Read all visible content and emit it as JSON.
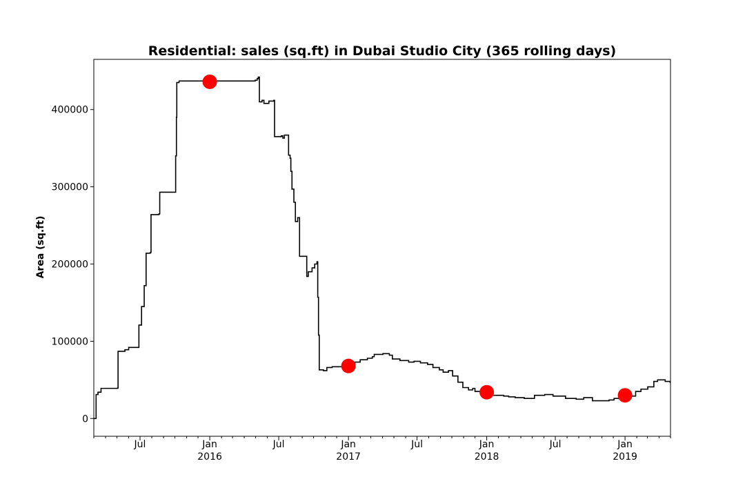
{
  "chart_data": {
    "type": "line",
    "title": "Residential: sales (sq.ft) in Dubai Studio City (365 rolling days)",
    "xlabel": "",
    "ylabel": "Area (sq.ft)",
    "xlim": [
      "2015-03-01",
      "2019-05-01"
    ],
    "ylim": [
      -23000,
      465000
    ],
    "grid": false,
    "line_color": "#000000",
    "marker_color": "#ff0000",
    "y_ticks": [
      {
        "value": 0,
        "label": "0"
      },
      {
        "value": 100000,
        "label": "100000"
      },
      {
        "value": 200000,
        "label": "200000"
      },
      {
        "value": 300000,
        "label": "300000"
      },
      {
        "value": 400000,
        "label": "400000"
      }
    ],
    "x_major_ticks": [
      {
        "date": "2015-07-01",
        "label": "Jul",
        "sublabel": ""
      },
      {
        "date": "2016-01-01",
        "label": "Jan",
        "sublabel": "2016"
      },
      {
        "date": "2016-07-01",
        "label": "Jul",
        "sublabel": ""
      },
      {
        "date": "2017-01-01",
        "label": "Jan",
        "sublabel": "2017"
      },
      {
        "date": "2017-07-01",
        "label": "Jul",
        "sublabel": ""
      },
      {
        "date": "2018-01-01",
        "label": "Jan",
        "sublabel": "2018"
      },
      {
        "date": "2018-07-01",
        "label": "Jul",
        "sublabel": ""
      },
      {
        "date": "2019-01-01",
        "label": "Jan",
        "sublabel": "2019"
      }
    ],
    "series": [
      {
        "values": [
          [
            "2015-03-01",
            0
          ],
          [
            "2015-03-06",
            0
          ],
          [
            "2015-03-07",
            31000
          ],
          [
            "2015-03-12",
            34000
          ],
          [
            "2015-03-20",
            39000
          ],
          [
            "2015-05-03",
            39500
          ],
          [
            "2015-05-04",
            87000
          ],
          [
            "2015-05-22",
            89000
          ],
          [
            "2015-06-01",
            92000
          ],
          [
            "2015-06-26",
            92000
          ],
          [
            "2015-06-28",
            121000
          ],
          [
            "2015-07-05",
            145000
          ],
          [
            "2015-07-12",
            172000
          ],
          [
            "2015-07-17",
            214000
          ],
          [
            "2015-07-28",
            215000
          ],
          [
            "2015-07-30",
            264000
          ],
          [
            "2015-08-20",
            265000
          ],
          [
            "2015-08-22",
            293000
          ],
          [
            "2015-10-01",
            293000
          ],
          [
            "2015-10-03",
            340000
          ],
          [
            "2015-10-05",
            390000
          ],
          [
            "2015-10-06",
            435000
          ],
          [
            "2015-10-12",
            437000
          ],
          [
            "2016-01-01",
            437000
          ],
          [
            "2016-04-30",
            438000
          ],
          [
            "2016-05-05",
            440000
          ],
          [
            "2016-05-08",
            442000
          ],
          [
            "2016-05-11",
            410000
          ],
          [
            "2016-05-18",
            412000
          ],
          [
            "2016-05-23",
            408000
          ],
          [
            "2016-06-05",
            411000
          ],
          [
            "2016-06-18",
            412000
          ],
          [
            "2016-06-20",
            365000
          ],
          [
            "2016-07-08",
            366000
          ],
          [
            "2016-07-12",
            363000
          ],
          [
            "2016-07-16",
            367000
          ],
          [
            "2016-07-25",
            367000
          ],
          [
            "2016-07-27",
            341000
          ],
          [
            "2016-07-31",
            337000
          ],
          [
            "2016-08-02",
            320000
          ],
          [
            "2016-08-05",
            297000
          ],
          [
            "2016-08-10",
            280000
          ],
          [
            "2016-08-14",
            255000
          ],
          [
            "2016-08-20",
            260000
          ],
          [
            "2016-08-25",
            210000
          ],
          [
            "2016-09-11",
            210000
          ],
          [
            "2016-09-13",
            184000
          ],
          [
            "2016-09-17",
            190000
          ],
          [
            "2016-09-27",
            195000
          ],
          [
            "2016-10-04",
            200000
          ],
          [
            "2016-10-10",
            203000
          ],
          [
            "2016-10-12",
            157000
          ],
          [
            "2016-10-14",
            108000
          ],
          [
            "2016-10-16",
            63000
          ],
          [
            "2016-10-27",
            62000
          ],
          [
            "2016-11-05",
            66000
          ],
          [
            "2016-11-19",
            67000
          ],
          [
            "2016-12-17",
            70000
          ],
          [
            "2016-12-31",
            69000
          ],
          [
            "2017-01-18",
            73000
          ],
          [
            "2017-02-01",
            76000
          ],
          [
            "2017-02-20",
            78000
          ],
          [
            "2017-03-05",
            80000
          ],
          [
            "2017-03-10",
            83000
          ],
          [
            "2017-04-02",
            84000
          ],
          [
            "2017-04-19",
            82000
          ],
          [
            "2017-04-27",
            77000
          ],
          [
            "2017-05-17",
            75000
          ],
          [
            "2017-06-09",
            73000
          ],
          [
            "2017-06-23",
            74000
          ],
          [
            "2017-07-10",
            72000
          ],
          [
            "2017-07-29",
            70000
          ],
          [
            "2017-08-12",
            66000
          ],
          [
            "2017-08-29",
            63000
          ],
          [
            "2017-09-08",
            60000
          ],
          [
            "2017-09-22",
            62000
          ],
          [
            "2017-10-03",
            55000
          ],
          [
            "2017-10-17",
            47000
          ],
          [
            "2017-10-30",
            40000
          ],
          [
            "2017-11-14",
            37000
          ],
          [
            "2017-11-25",
            39000
          ],
          [
            "2017-12-01",
            35000
          ],
          [
            "2017-12-23",
            33000
          ],
          [
            "2018-01-01",
            34000
          ],
          [
            "2018-01-16",
            30000
          ],
          [
            "2018-02-15",
            29000
          ],
          [
            "2018-02-28",
            28000
          ],
          [
            "2018-03-17",
            27000
          ],
          [
            "2018-04-10",
            26000
          ],
          [
            "2018-05-07",
            30000
          ],
          [
            "2018-06-03",
            31000
          ],
          [
            "2018-06-25",
            29000
          ],
          [
            "2018-07-28",
            26000
          ],
          [
            "2018-08-25",
            25000
          ],
          [
            "2018-09-14",
            27000
          ],
          [
            "2018-10-07",
            23000
          ],
          [
            "2018-11-20",
            24000
          ],
          [
            "2018-12-03",
            26000
          ],
          [
            "2018-12-28",
            27000
          ],
          [
            "2019-01-11",
            29000
          ],
          [
            "2019-01-29",
            35000
          ],
          [
            "2019-02-12",
            38000
          ],
          [
            "2019-03-02",
            41000
          ],
          [
            "2019-03-18",
            48000
          ],
          [
            "2019-03-28",
            50000
          ],
          [
            "2019-04-17",
            48000
          ],
          [
            "2019-04-30",
            46000
          ]
        ]
      }
    ],
    "markers": [
      [
        "2016-01-01",
        436000
      ],
      [
        "2017-01-01",
        68000
      ],
      [
        "2018-01-01",
        34000
      ],
      [
        "2019-01-01",
        30000
      ]
    ]
  }
}
